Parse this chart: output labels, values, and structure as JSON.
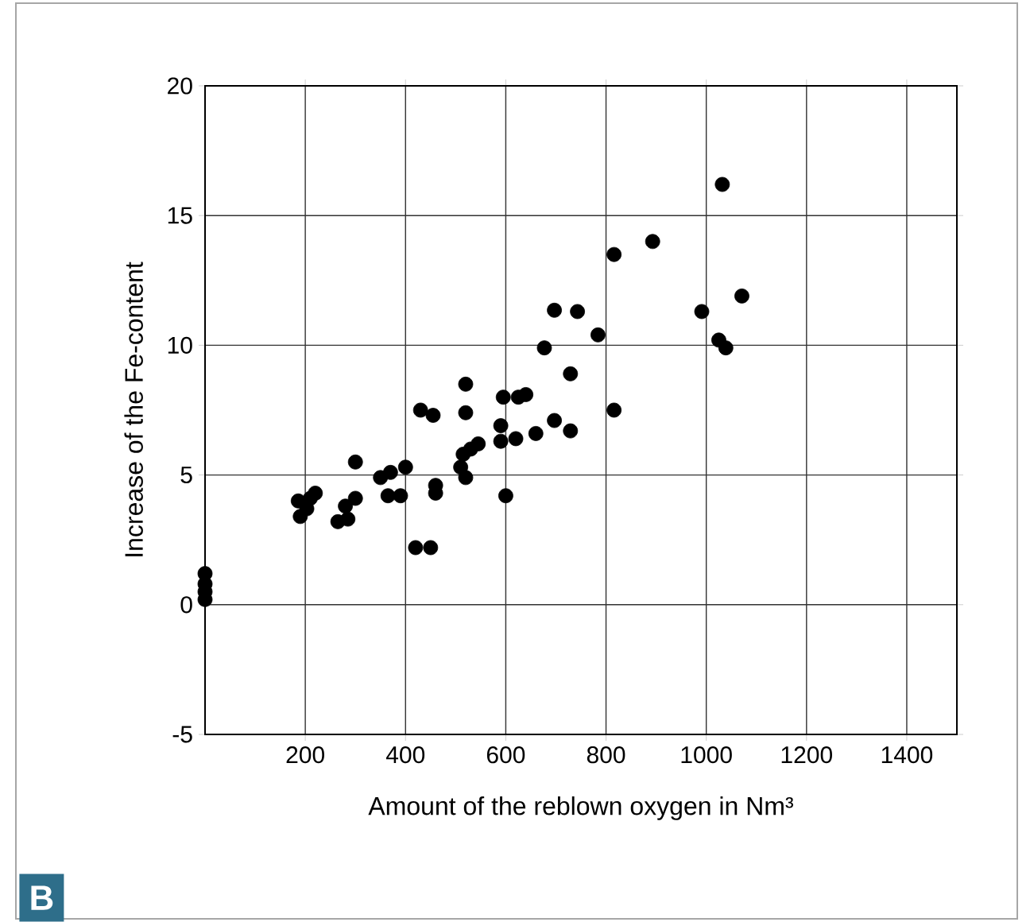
{
  "chart_data": {
    "type": "scatter",
    "xlabel": "Amount of the reblown oxygen in Nm³",
    "ylabel": "Increase of the Fe-content",
    "annotations": [
      "B"
    ],
    "xlim": [
      0,
      1500
    ],
    "ylim": [
      -5,
      20
    ],
    "xticks": [
      200,
      400,
      600,
      800,
      1000,
      1200,
      1400
    ],
    "yticks": [
      -5,
      0,
      5,
      10,
      15,
      20
    ],
    "grid": true,
    "marker": "circle",
    "series": [
      {
        "color": "#000000",
        "x": [
          0,
          0,
          0,
          0,
          190,
          186,
          203,
          210,
          220,
          265,
          280,
          285,
          300,
          300,
          350,
          365,
          370,
          390,
          400,
          420,
          430,
          450,
          455,
          460,
          460,
          510,
          515,
          520,
          520,
          520,
          530,
          545,
          590,
          590,
          595,
          600,
          620,
          625,
          640,
          660,
          677,
          697,
          697,
          729,
          729,
          743,
          784,
          816,
          816,
          893,
          991,
          1032,
          1025,
          1039,
          1071
        ],
        "values": [
          0.2,
          0.5,
          0.8,
          1.2,
          3.4,
          4.0,
          3.7,
          4.1,
          4.3,
          3.2,
          3.8,
          3.3,
          4.1,
          5.5,
          4.9,
          4.2,
          5.1,
          4.2,
          5.3,
          2.2,
          7.5,
          2.2,
          7.3,
          4.3,
          4.6,
          5.3,
          5.8,
          8.5,
          7.4,
          4.9,
          6.0,
          6.2,
          6.9,
          6.3,
          8.0,
          4.2,
          6.4,
          8.0,
          8.1,
          6.6,
          9.9,
          11.35,
          7.1,
          8.9,
          6.7,
          11.3,
          10.4,
          13.5,
          7.5,
          14.0,
          11.3,
          16.2,
          10.2,
          9.9,
          11.9
        ]
      }
    ]
  }
}
